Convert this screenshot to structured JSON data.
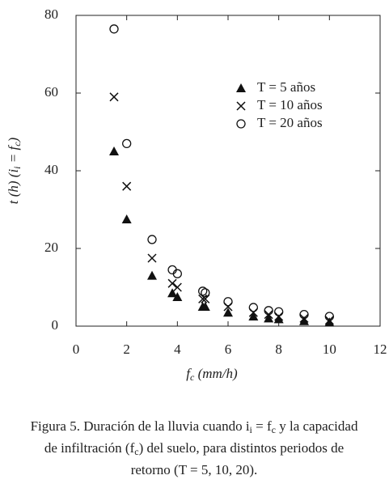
{
  "chart_data": {
    "type": "scatter",
    "x_label": [
      "f",
      "c",
      " (mm/h)"
    ],
    "y_label": [
      "t (h) (i",
      "i",
      " = f",
      "c",
      ")"
    ],
    "xlim": [
      0,
      12
    ],
    "xticks": [
      0,
      2,
      4,
      6,
      8,
      10,
      12
    ],
    "ylim": [
      0,
      80
    ],
    "yticks": [
      0,
      20,
      40,
      60,
      80
    ],
    "legend": "upper right",
    "series": [
      {
        "name": "T = 5 años",
        "marker": "triangle",
        "color": "#111",
        "x": [
          1.5,
          2,
          3,
          3.8,
          4,
          5,
          5.1,
          6,
          7,
          7.6,
          8,
          9,
          10
        ],
        "values": [
          45,
          27.5,
          13,
          8.5,
          7.5,
          5,
          5,
          3.5,
          2.5,
          2,
          1.8,
          1.3,
          1
        ]
      },
      {
        "name": "T = 10 años",
        "marker": "x",
        "color": "#111",
        "x": [
          1.5,
          2,
          3,
          3.8,
          4,
          5,
          5.1,
          6,
          7,
          7.6,
          8,
          9,
          10
        ],
        "values": [
          59,
          36,
          17.5,
          11,
          10,
          7,
          7,
          5,
          3.5,
          3,
          2.5,
          2,
          1.5
        ]
      },
      {
        "name": "T = 20 años",
        "marker": "circle",
        "color": "#111",
        "x": [
          1.5,
          2,
          3,
          3.8,
          4,
          5,
          5.1,
          6,
          7,
          7.6,
          8,
          9,
          10
        ],
        "values": [
          76.5,
          47,
          22.3,
          14.5,
          13.5,
          9,
          8.6,
          6.3,
          4.8,
          4,
          3.7,
          3,
          2.5
        ]
      }
    ],
    "caption": [
      [
        "Figura 5. Duración de la lluvia cuando i",
        "i",
        " = f",
        "c",
        " y la capacidad"
      ],
      [
        "de infiltración (f",
        "c",
        ") del suelo, para distintos periodos de"
      ],
      [
        "retorno (T = 5, 10, 20)."
      ]
    ]
  }
}
